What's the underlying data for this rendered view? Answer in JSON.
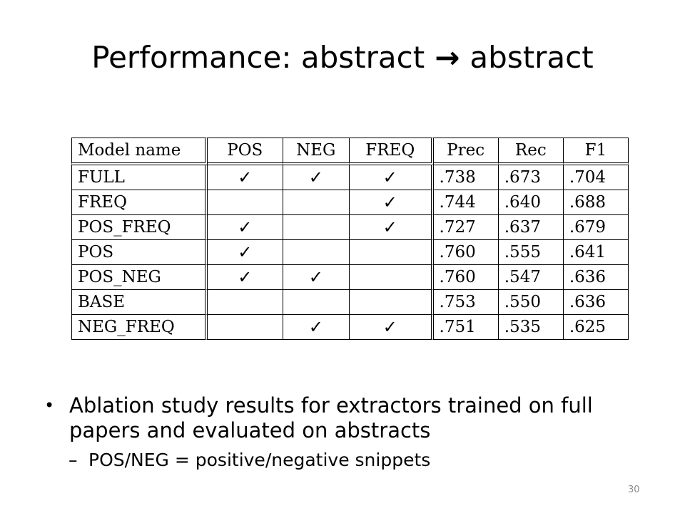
{
  "slide": {
    "title_left": "Performance: abstract",
    "title_arrow": "→",
    "title_right": "abstract",
    "page_number": "30"
  },
  "table": {
    "headers": [
      "Model name",
      "POS",
      "NEG",
      "FREQ",
      "Prec",
      "Rec",
      "F1"
    ],
    "rows": [
      {
        "model": "FULL",
        "pos": "✓",
        "neg": "✓",
        "freq": "✓",
        "prec": ".738",
        "rec": ".673",
        "f1": ".704"
      },
      {
        "model": "FREQ",
        "pos": "",
        "neg": "",
        "freq": "✓",
        "prec": ".744",
        "rec": ".640",
        "f1": ".688"
      },
      {
        "model": "POS_FREQ",
        "pos": "✓",
        "neg": "",
        "freq": "✓",
        "prec": ".727",
        "rec": ".637",
        "f1": ".679"
      },
      {
        "model": "POS",
        "pos": "✓",
        "neg": "",
        "freq": "",
        "prec": ".760",
        "rec": ".555",
        "f1": ".641"
      },
      {
        "model": "POS_NEG",
        "pos": "✓",
        "neg": "✓",
        "freq": "",
        "prec": ".760",
        "rec": ".547",
        "f1": ".636"
      },
      {
        "model": "BASE",
        "pos": "",
        "neg": "",
        "freq": "",
        "prec": ".753",
        "rec": ".550",
        "f1": ".636"
      },
      {
        "model": "NEG_FREQ",
        "pos": "",
        "neg": "✓",
        "freq": "✓",
        "prec": ".751",
        "rec": ".535",
        "f1": ".625"
      }
    ]
  },
  "bullets": {
    "marker": "•",
    "main": "Ablation study results for extractors trained on full papers and evaluated on abstracts",
    "sub_marker": "–",
    "sub": "POS/NEG = positive/negative  snippets"
  }
}
